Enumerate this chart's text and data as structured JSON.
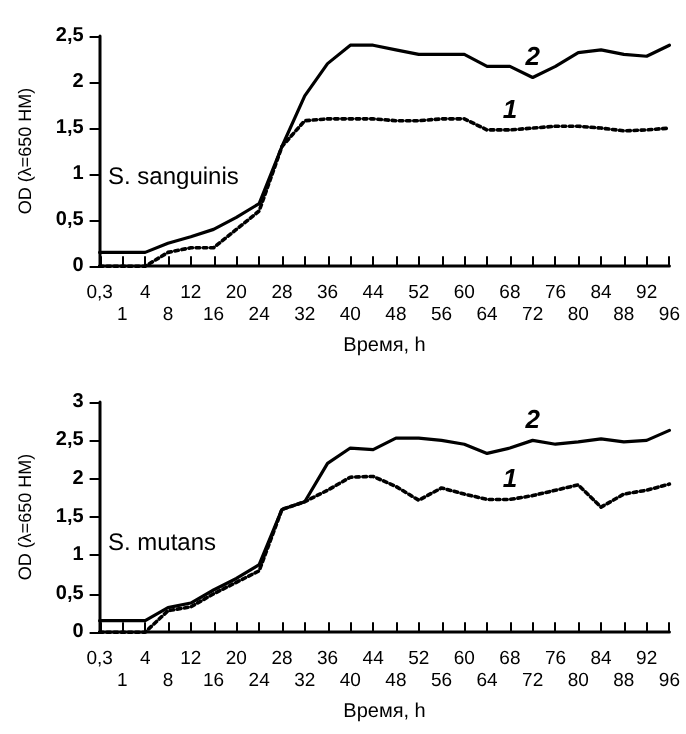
{
  "chart_data": [
    {
      "type": "line",
      "xlabel": "Время, h",
      "ylabel": "OD (λ=650 НМ)",
      "annotations": [
        "S. sanguinis"
      ],
      "categories": [
        "0,3",
        "1",
        "4",
        "8",
        "12",
        "16",
        "20",
        "24",
        "28",
        "32",
        "36",
        "40",
        "44",
        "48",
        "52",
        "56",
        "60",
        "64",
        "68",
        "72",
        "76",
        "80",
        "84",
        "88",
        "92",
        "96"
      ],
      "ylim": [
        0,
        2.5
      ],
      "yticks": [
        {
          "value": 0,
          "label": "0"
        },
        {
          "value": 0.5,
          "label": "0,5"
        },
        {
          "value": 1,
          "label": "1"
        },
        {
          "value": 1.5,
          "label": "1,5"
        },
        {
          "value": 2,
          "label": "2"
        },
        {
          "value": 2.5,
          "label": "2,5"
        }
      ],
      "grid": false,
      "legend": false,
      "marker": "none",
      "series": [
        {
          "name": "2",
          "color": "#000000",
          "line_style": "solid",
          "values": [
            0.15,
            0.15,
            0.15,
            0.25,
            0.32,
            0.4,
            0.53,
            0.68,
            1.3,
            1.85,
            2.2,
            2.4,
            2.4,
            2.35,
            2.3,
            2.3,
            2.3,
            2.17,
            2.17,
            2.05,
            2.17,
            2.32,
            2.35,
            2.3,
            2.28,
            2.4
          ]
        },
        {
          "name": "1",
          "color": "#000000",
          "line_style": "dotted",
          "values": [
            0,
            0,
            0,
            0.15,
            0.2,
            0.2,
            0.4,
            0.6,
            1.3,
            1.58,
            1.6,
            1.6,
            1.6,
            1.58,
            1.58,
            1.6,
            1.6,
            1.48,
            1.48,
            1.5,
            1.52,
            1.52,
            1.5,
            1.47,
            1.48,
            1.5
          ]
        }
      ]
    },
    {
      "type": "line",
      "xlabel": "Время, h",
      "ylabel": "OD (λ=650 НМ)",
      "annotations": [
        "S. mutans"
      ],
      "categories": [
        "0,3",
        "1",
        "4",
        "8",
        "12",
        "16",
        "20",
        "24",
        "28",
        "32",
        "36",
        "40",
        "44",
        "48",
        "52",
        "56",
        "60",
        "64",
        "68",
        "72",
        "76",
        "80",
        "84",
        "88",
        "92",
        "96"
      ],
      "ylim": [
        0,
        3
      ],
      "yticks": [
        {
          "value": 0,
          "label": "0"
        },
        {
          "value": 0.5,
          "label": "0,5"
        },
        {
          "value": 1,
          "label": "1"
        },
        {
          "value": 1.5,
          "label": "1,5"
        },
        {
          "value": 2,
          "label": "2"
        },
        {
          "value": 2.5,
          "label": "2,5"
        },
        {
          "value": 3,
          "label": "3"
        }
      ],
      "grid": false,
      "legend": false,
      "marker": "none",
      "series": [
        {
          "name": "2",
          "color": "#000000",
          "line_style": "solid",
          "values": [
            0.15,
            0.15,
            0.15,
            0.32,
            0.38,
            0.55,
            0.7,
            0.88,
            1.6,
            1.7,
            2.2,
            2.4,
            2.38,
            2.53,
            2.53,
            2.5,
            2.45,
            2.33,
            2.4,
            2.5,
            2.45,
            2.48,
            2.52,
            2.48,
            2.5,
            2.63
          ]
        },
        {
          "name": "1",
          "color": "#000000",
          "line_style": "dotted",
          "values": [
            0,
            0,
            0,
            0.28,
            0.33,
            0.5,
            0.65,
            0.8,
            1.6,
            1.7,
            1.85,
            2.02,
            2.03,
            1.9,
            1.72,
            1.88,
            1.8,
            1.73,
            1.73,
            1.78,
            1.85,
            1.92,
            1.63,
            1.8,
            1.85,
            1.93
          ]
        }
      ]
    }
  ]
}
